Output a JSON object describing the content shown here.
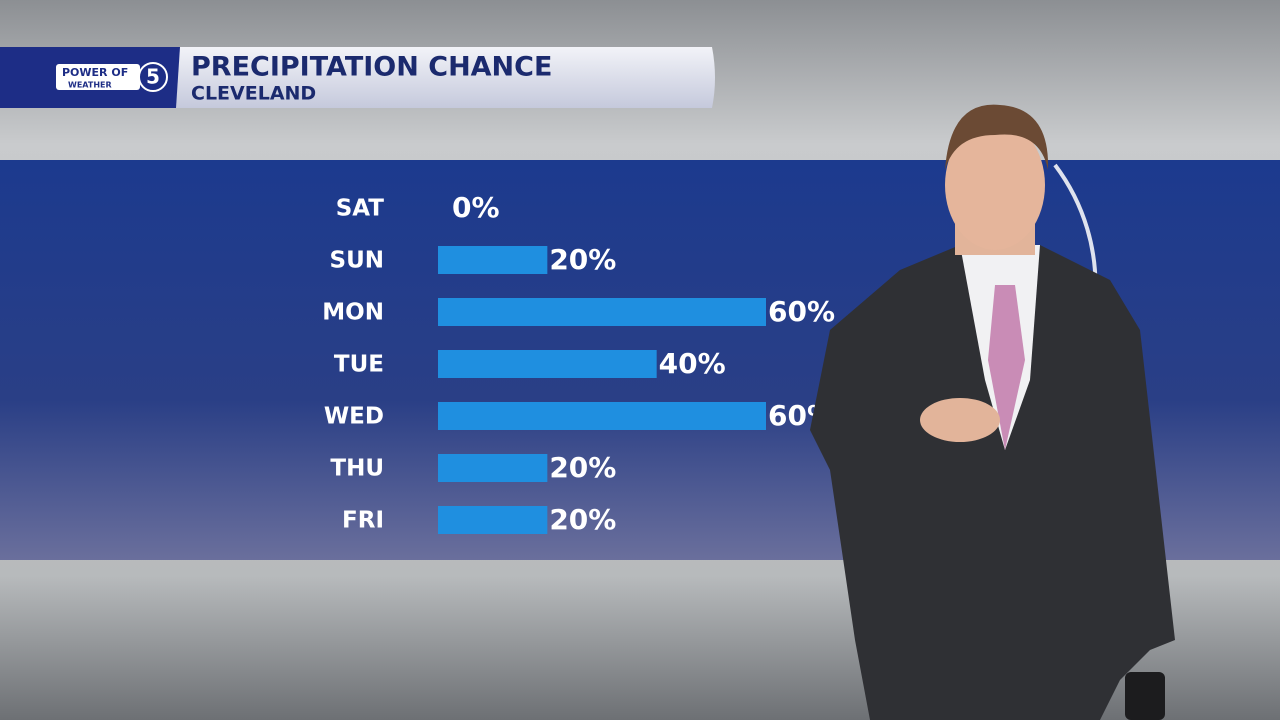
{
  "logo": {
    "top": "POWER OF",
    "number": "5",
    "bottom": "WEATHER"
  },
  "chart_data": {
    "type": "bar",
    "orientation": "horizontal",
    "title": "PRECIPITATION CHANCE",
    "subtitle": "CLEVELAND",
    "categories": [
      "SAT",
      "SUN",
      "MON",
      "TUE",
      "WED",
      "THU",
      "FRI"
    ],
    "values": [
      0,
      20,
      60,
      40,
      60,
      20,
      20
    ],
    "value_labels": [
      "0%",
      "20%",
      "60%",
      "40%",
      "60%",
      "20%",
      "20%"
    ],
    "color": "#1f8fe0"
  }
}
